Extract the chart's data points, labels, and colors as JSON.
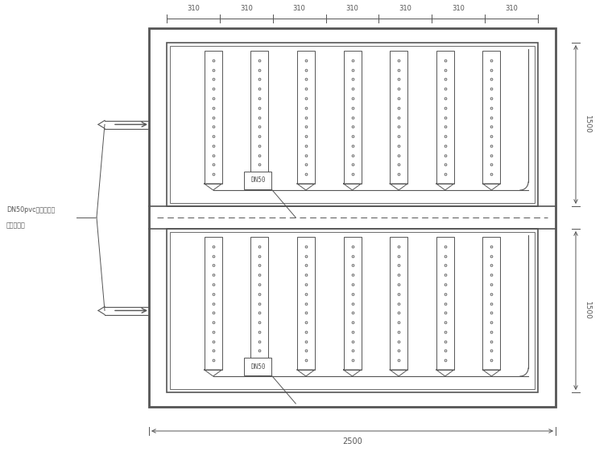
{
  "bg_color": "#ffffff",
  "line_color": "#555555",
  "num_dim_spans": 7,
  "dim_label": "310",
  "right_dim_top": "1500",
  "right_dim_bot": "1500",
  "bottom_dim": "2500",
  "dn50_label": "DN50",
  "left_label_line1": "DN50pvc流泥回流管",
  "left_label_line2": "接至调节池",
  "num_cols": 7
}
